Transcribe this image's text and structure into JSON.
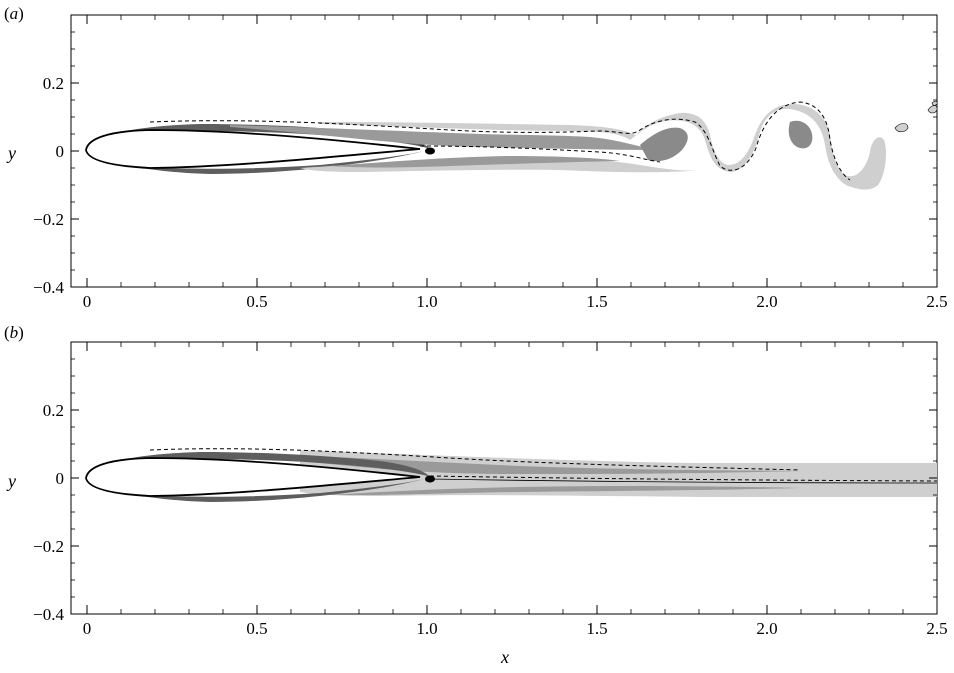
{
  "chart_data": [
    {
      "type": "contour",
      "panel_label_letter": "a",
      "xlabel": "",
      "ylabel": "y",
      "xlim": [
        0,
        2.5
      ],
      "ylim": [
        -0.4,
        0.4
      ],
      "x_ticks": [
        "0",
        "0.5",
        "1.0",
        "1.5",
        "2.0",
        "2.5"
      ],
      "y_ticks": [
        "0.2",
        "0",
        "−0.2",
        "−0.4"
      ],
      "wake": "unsteady oscillating wake downstream of trailing edge",
      "colors": {
        "light": "#cfcfcf",
        "mid": "#9a9a9a",
        "dark": "#5e5e5e",
        "black": "#000000"
      }
    },
    {
      "type": "contour",
      "panel_label_letter": "b",
      "xlabel": "x",
      "ylabel": "y",
      "xlim": [
        0,
        2.5
      ],
      "ylim": [
        -0.4,
        0.4
      ],
      "x_ticks": [
        "0",
        "0.5",
        "1.0",
        "1.5",
        "2.0",
        "2.5"
      ],
      "y_ticks": [
        "0.2",
        "0",
        "−0.2",
        "−0.4"
      ],
      "wake": "steady straight wake downstream of trailing edge",
      "colors": {
        "light": "#cfcfcf",
        "mid": "#9a9a9a",
        "dark": "#5e5e5e",
        "black": "#000000"
      }
    }
  ]
}
